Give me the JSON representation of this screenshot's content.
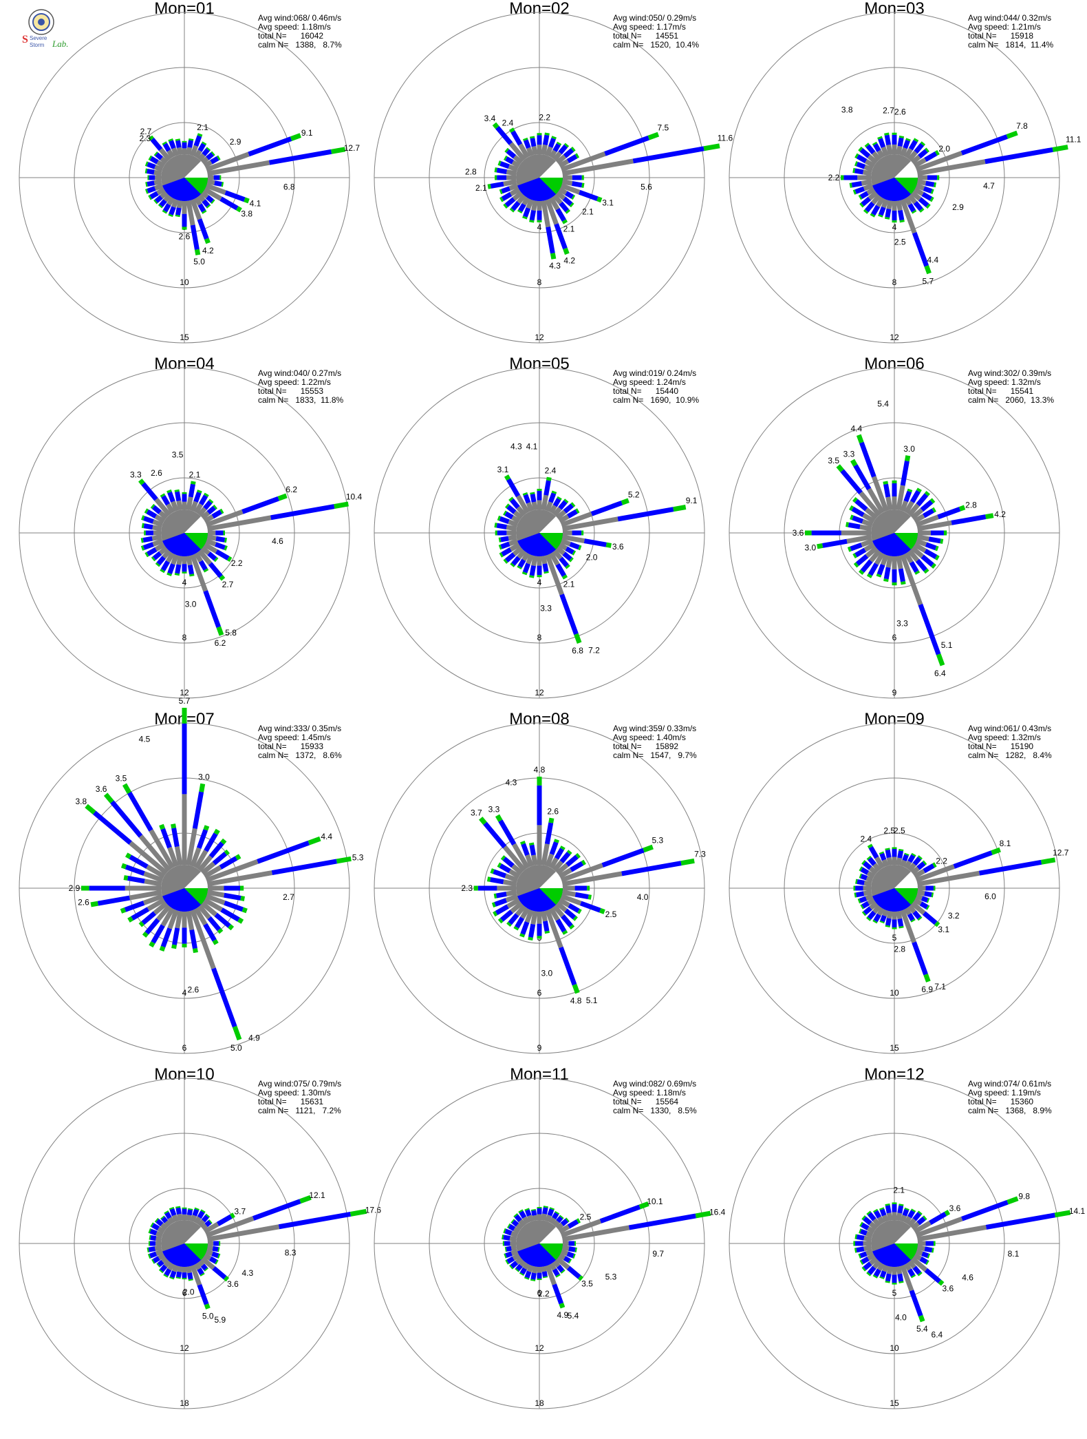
{
  "logo": {
    "primary_text": "Severe",
    "secondary_text": "Storm",
    "tertiary_text": "Lab.",
    "icon": "university-seal-icon"
  },
  "colors": {
    "calm": "#808080",
    "speed_low": "#808080",
    "speed_mid": "#0000ff",
    "speed_high": "#00cc00",
    "speed_max": "#ff8c1a",
    "axis": "#808080"
  },
  "chart_data": [
    {
      "type": "polar-bar",
      "title": "Mon=01",
      "stats": {
        "avg_wind": "Avg wind:068/ 0.46m/s",
        "avg_speed": "Avg speed: 1.18m/s",
        "total_n": "total N=      16042",
        "calm_n": "calm N=   1388,   8.7%"
      },
      "rings": [
        5,
        10,
        15
      ],
      "ring_labels": [
        "5",
        "10",
        "15"
      ],
      "labels": [
        {
          "dir": 20,
          "v": 2.1,
          "t": "2.1"
        },
        {
          "dir": 55,
          "v": 2.9,
          "t": "2.9"
        },
        {
          "dir": 70,
          "v": 9.1,
          "t": "9.1"
        },
        {
          "dir": 80,
          "v": 12.7,
          "t": "12.7"
        },
        {
          "dir": 95,
          "v": 6.8,
          "t": "6.8"
        },
        {
          "dir": 110,
          "v": 4.1,
          "t": "4.1"
        },
        {
          "dir": 120,
          "v": 3.8,
          "t": "3.8"
        },
        {
          "dir": 180,
          "v": 2.6,
          "t": "2.6"
        },
        {
          "dir": 162,
          "v": 4.2,
          "t": "4.2"
        },
        {
          "dir": 170,
          "v": 5.0,
          "t": "5.0"
        },
        {
          "dir": 320,
          "v": 2.7,
          "t": "2.7"
        },
        {
          "dir": 315,
          "v": 2.3,
          "t": "2.3"
        }
      ]
    },
    {
      "type": "polar-bar",
      "title": "Mon=02",
      "stats": {
        "avg_wind": "Avg wind:050/ 0.29m/s",
        "avg_speed": "Avg speed: 1.17m/s",
        "total_n": "total N=      14551",
        "calm_n": "calm N=   1520,  10.4%"
      },
      "rings": [
        4,
        8,
        12
      ],
      "ring_labels": [
        "4",
        "8",
        "12"
      ],
      "labels": [
        {
          "dir": 5,
          "v": 2.2,
          "t": "2.2"
        },
        {
          "dir": 330,
          "v": 2.4,
          "t": "2.4"
        },
        {
          "dir": 320,
          "v": 3.4,
          "t": "3.4"
        },
        {
          "dir": 68,
          "v": 7.5,
          "t": "7.5"
        },
        {
          "dir": 78,
          "v": 11.6,
          "t": "11.6"
        },
        {
          "dir": 95,
          "v": 5.6,
          "t": "5.6"
        },
        {
          "dir": 110,
          "v": 3.1,
          "t": "3.1"
        },
        {
          "dir": 125,
          "v": 2.1,
          "t": "2.1"
        },
        {
          "dir": 150,
          "v": 2.1,
          "t": "2.1"
        },
        {
          "dir": 160,
          "v": 4.2,
          "t": "4.2"
        },
        {
          "dir": 170,
          "v": 4.3,
          "t": "4.3"
        },
        {
          "dir": 275,
          "v": 2.8,
          "t": "2.8"
        },
        {
          "dir": 260,
          "v": 2.1,
          "t": "2.1"
        }
      ]
    },
    {
      "type": "polar-bar",
      "title": "Mon=03",
      "stats": {
        "avg_wind": "Avg wind:044/ 0.32m/s",
        "avg_speed": "Avg speed: 1.21m/s",
        "total_n": "total N=      15918",
        "calm_n": "calm N=   1814,  11.4%"
      },
      "rings": [
        4,
        8,
        12
      ],
      "ring_labels": [
        "4",
        "8",
        "12"
      ],
      "labels": [
        {
          "dir": 5,
          "v": 2.6,
          "t": "2.6"
        },
        {
          "dir": 355,
          "v": 2.7,
          "t": "2.7"
        },
        {
          "dir": 325,
          "v": 3.8,
          "t": "3.8"
        },
        {
          "dir": 60,
          "v": 2.0,
          "t": "2.0"
        },
        {
          "dir": 68,
          "v": 7.8,
          "t": "7.8"
        },
        {
          "dir": 78,
          "v": 11.1,
          "t": "11.1"
        },
        {
          "dir": 95,
          "v": 4.7,
          "t": "4.7"
        },
        {
          "dir": 115,
          "v": 2.9,
          "t": "2.9"
        },
        {
          "dir": 155,
          "v": 4.4,
          "t": "4.4"
        },
        {
          "dir": 162,
          "v": 5.7,
          "t": "5.7"
        },
        {
          "dir": 175,
          "v": 2.5,
          "t": "2.5"
        },
        {
          "dir": 270,
          "v": 2.2,
          "t": "2.2"
        }
      ]
    },
    {
      "type": "polar-bar",
      "title": "Mon=04",
      "stats": {
        "avg_wind": "Avg wind:040/ 0.27m/s",
        "avg_speed": "Avg speed: 1.22m/s",
        "total_n": "total N=      15553",
        "calm_n": "calm N=   1833,  11.8%"
      },
      "rings": [
        4,
        8,
        12
      ],
      "ring_labels": [
        "4",
        "8",
        "12"
      ],
      "labels": [
        {
          "dir": 355,
          "v": 3.5,
          "t": "3.5"
        },
        {
          "dir": 10,
          "v": 2.1,
          "t": "2.1"
        },
        {
          "dir": 335,
          "v": 2.6,
          "t": "2.6"
        },
        {
          "dir": 320,
          "v": 3.3,
          "t": "3.3"
        },
        {
          "dir": 68,
          "v": 6.2,
          "t": "6.2"
        },
        {
          "dir": 78,
          "v": 10.4,
          "t": "10.4"
        },
        {
          "dir": 95,
          "v": 4.6,
          "t": "4.6"
        },
        {
          "dir": 120,
          "v": 2.2,
          "t": "2.2"
        },
        {
          "dir": 140,
          "v": 2.7,
          "t": "2.7"
        },
        {
          "dir": 155,
          "v": 5.8,
          "t": "5.8"
        },
        {
          "dir": 162,
          "v": 6.2,
          "t": "6.2"
        },
        {
          "dir": 175,
          "v": 3.0,
          "t": "3.0"
        }
      ]
    },
    {
      "type": "polar-bar",
      "title": "Mon=05",
      "stats": {
        "avg_wind": "Avg wind:019/ 0.24m/s",
        "avg_speed": "Avg speed: 1.24m/s",
        "total_n": "total N=      15440",
        "calm_n": "calm N=   1690,  10.9%"
      },
      "rings": [
        4,
        8,
        12
      ],
      "ring_labels": [
        "4",
        "8",
        "12"
      ],
      "labels": [
        {
          "dir": 355,
          "v": 4.1,
          "t": "4.1"
        },
        {
          "dir": 345,
          "v": 4.3,
          "t": "4.3"
        },
        {
          "dir": 10,
          "v": 2.4,
          "t": "2.4"
        },
        {
          "dir": 330,
          "v": 3.1,
          "t": "3.1"
        },
        {
          "dir": 68,
          "v": 5.2,
          "t": "5.2"
        },
        {
          "dir": 78,
          "v": 9.1,
          "t": "9.1"
        },
        {
          "dir": 100,
          "v": 3.6,
          "t": "3.6"
        },
        {
          "dir": 115,
          "v": 2.0,
          "t": "2.0"
        },
        {
          "dir": 150,
          "v": 2.1,
          "t": "2.1"
        },
        {
          "dir": 155,
          "v": 7.2,
          "t": "7.2"
        },
        {
          "dir": 162,
          "v": 6.8,
          "t": "6.8"
        },
        {
          "dir": 175,
          "v": 3.3,
          "t": "3.3"
        }
      ]
    },
    {
      "type": "polar-bar",
      "title": "Mon=06",
      "stats": {
        "avg_wind": "Avg wind:302/ 0.39m/s",
        "avg_speed": "Avg speed: 1.32m/s",
        "total_n": "total N=      15541",
        "calm_n": "calm N=   2060,  13.3%"
      },
      "rings": [
        3,
        6,
        9
      ],
      "ring_labels": [
        "3",
        "6",
        "9"
      ],
      "labels": [
        {
          "dir": 355,
          "v": 5.4,
          "t": "5.4"
        },
        {
          "dir": 340,
          "v": 4.4,
          "t": "4.4"
        },
        {
          "dir": 10,
          "v": 3.0,
          "t": "3.0"
        },
        {
          "dir": 330,
          "v": 3.3,
          "t": "3.3"
        },
        {
          "dir": 320,
          "v": 3.5,
          "t": "3.5"
        },
        {
          "dir": 70,
          "v": 2.8,
          "t": "2.8"
        },
        {
          "dir": 80,
          "v": 4.2,
          "t": "4.2"
        },
        {
          "dir": 270,
          "v": 3.6,
          "t": "3.6"
        },
        {
          "dir": 260,
          "v": 3.0,
          "t": "3.0"
        },
        {
          "dir": 155,
          "v": 5.1,
          "t": "5.1"
        },
        {
          "dir": 162,
          "v": 6.4,
          "t": "6.4"
        },
        {
          "dir": 175,
          "v": 3.3,
          "t": "3.3"
        }
      ]
    },
    {
      "type": "polar-bar",
      "title": "Mon=07",
      "stats": {
        "avg_wind": "Avg wind:333/ 0.35m/s",
        "avg_speed": "Avg speed: 1.45m/s",
        "total_n": "total N=      15933",
        "calm_n": "calm N=   1372,   8.6%"
      },
      "rings": [
        2,
        4,
        6
      ],
      "ring_labels": [
        "2",
        "4",
        "6"
      ],
      "labels": [
        {
          "dir": 0,
          "v": 5.7,
          "t": "5.7"
        },
        {
          "dir": 345,
          "v": 4.5,
          "t": "4.5"
        },
        {
          "dir": 10,
          "v": 3.0,
          "t": "3.0"
        },
        {
          "dir": 330,
          "v": 3.5,
          "t": "3.5"
        },
        {
          "dir": 320,
          "v": 3.6,
          "t": "3.6"
        },
        {
          "dir": 310,
          "v": 3.8,
          "t": "3.8"
        },
        {
          "dir": 70,
          "v": 4.4,
          "t": "4.4"
        },
        {
          "dir": 80,
          "v": 5.3,
          "t": "5.3"
        },
        {
          "dir": 95,
          "v": 2.7,
          "t": "2.7"
        },
        {
          "dir": 270,
          "v": 2.9,
          "t": "2.9"
        },
        {
          "dir": 262,
          "v": 2.6,
          "t": "2.6"
        },
        {
          "dir": 155,
          "v": 4.9,
          "t": "4.9"
        },
        {
          "dir": 162,
          "v": 5.0,
          "t": "5.0"
        },
        {
          "dir": 175,
          "v": 2.6,
          "t": "2.6"
        }
      ]
    },
    {
      "type": "polar-bar",
      "title": "Mon=08",
      "stats": {
        "avg_wind": "Avg wind:359/ 0.33m/s",
        "avg_speed": "Avg speed: 1.40m/s",
        "total_n": "total N=      15892",
        "calm_n": "calm N=   1547,   9.7%"
      },
      "rings": [
        3,
        6,
        9
      ],
      "ring_labels": [
        "3",
        "6",
        "9"
      ],
      "labels": [
        {
          "dir": 0,
          "v": 4.8,
          "t": "4.8"
        },
        {
          "dir": 345,
          "v": 4.3,
          "t": "4.3"
        },
        {
          "dir": 10,
          "v": 2.6,
          "t": "2.6"
        },
        {
          "dir": 330,
          "v": 3.3,
          "t": "3.3"
        },
        {
          "dir": 320,
          "v": 3.7,
          "t": "3.7"
        },
        {
          "dir": 68,
          "v": 5.3,
          "t": "5.3"
        },
        {
          "dir": 78,
          "v": 7.3,
          "t": "7.3"
        },
        {
          "dir": 95,
          "v": 4.0,
          "t": "4.0"
        },
        {
          "dir": 110,
          "v": 2.5,
          "t": "2.5"
        },
        {
          "dir": 270,
          "v": 2.3,
          "t": "2.3"
        },
        {
          "dir": 155,
          "v": 5.1,
          "t": "5.1"
        },
        {
          "dir": 162,
          "v": 4.8,
          "t": "4.8"
        },
        {
          "dir": 175,
          "v": 3.0,
          "t": "3.0"
        }
      ]
    },
    {
      "type": "polar-bar",
      "title": "Mon=09",
      "stats": {
        "avg_wind": "Avg wind:061/ 0.43m/s",
        "avg_speed": "Avg speed: 1.32m/s",
        "total_n": "total N=      15190",
        "calm_n": "calm N=   1282,   8.4%"
      },
      "rings": [
        5,
        10,
        15
      ],
      "ring_labels": [
        "5",
        "10",
        "15"
      ],
      "labels": [
        {
          "dir": 5,
          "v": 2.5,
          "t": "2.5"
        },
        {
          "dir": 355,
          "v": 2.5,
          "t": "2.5"
        },
        {
          "dir": 330,
          "v": 2.4,
          "t": "2.4"
        },
        {
          "dir": 60,
          "v": 2.2,
          "t": "2.2"
        },
        {
          "dir": 68,
          "v": 8.1,
          "t": "8.1"
        },
        {
          "dir": 78,
          "v": 12.7,
          "t": "12.7"
        },
        {
          "dir": 95,
          "v": 6.0,
          "t": "6.0"
        },
        {
          "dir": 115,
          "v": 3.2,
          "t": "3.2"
        },
        {
          "dir": 130,
          "v": 3.1,
          "t": "3.1"
        },
        {
          "dir": 155,
          "v": 7.1,
          "t": "7.1"
        },
        {
          "dir": 162,
          "v": 6.9,
          "t": "6.9"
        },
        {
          "dir": 175,
          "v": 2.8,
          "t": "2.8"
        }
      ]
    },
    {
      "type": "polar-bar",
      "title": "Mon=10",
      "stats": {
        "avg_wind": "Avg wind:075/ 0.79m/s",
        "avg_speed": "Avg speed: 1.30m/s",
        "total_n": "total N=      15631",
        "calm_n": "calm N=   1121,   7.2%"
      },
      "rings": [
        6,
        12,
        18
      ],
      "ring_labels": [
        "6",
        "12",
        "18"
      ],
      "labels": [
        {
          "dir": 60,
          "v": 3.7,
          "t": "3.7"
        },
        {
          "dir": 70,
          "v": 12.1,
          "t": "12.1"
        },
        {
          "dir": 80,
          "v": 17.6,
          "t": "17.6"
        },
        {
          "dir": 95,
          "v": 8.3,
          "t": "8.3"
        },
        {
          "dir": 115,
          "v": 4.3,
          "t": "4.3"
        },
        {
          "dir": 130,
          "v": 3.6,
          "t": "3.6"
        },
        {
          "dir": 155,
          "v": 5.9,
          "t": "5.9"
        },
        {
          "dir": 162,
          "v": 5.0,
          "t": "5.0"
        },
        {
          "dir": 175,
          "v": 2.0,
          "t": "2.0"
        }
      ]
    },
    {
      "type": "polar-bar",
      "title": "Mon=11",
      "stats": {
        "avg_wind": "Avg wind:082/ 0.69m/s",
        "avg_speed": "Avg speed: 1.18m/s",
        "total_n": "total N=      15564",
        "calm_n": "calm N=   1330,   8.5%"
      },
      "rings": [
        6,
        12,
        18
      ],
      "ring_labels": [
        "6",
        "12",
        "18"
      ],
      "labels": [
        {
          "dir": 60,
          "v": 2.5,
          "t": "2.5"
        },
        {
          "dir": 70,
          "v": 10.1,
          "t": "10.1"
        },
        {
          "dir": 80,
          "v": 16.4,
          "t": "16.4"
        },
        {
          "dir": 95,
          "v": 9.7,
          "t": "9.7"
        },
        {
          "dir": 115,
          "v": 5.3,
          "t": "5.3"
        },
        {
          "dir": 130,
          "v": 3.5,
          "t": "3.5"
        },
        {
          "dir": 155,
          "v": 5.4,
          "t": "5.4"
        },
        {
          "dir": 162,
          "v": 4.9,
          "t": "4.9"
        },
        {
          "dir": 175,
          "v": 2.2,
          "t": "2.2"
        }
      ]
    },
    {
      "type": "polar-bar",
      "title": "Mon=12",
      "stats": {
        "avg_wind": "Avg wind:074/ 0.61m/s",
        "avg_speed": "Avg speed: 1.19m/s",
        "total_n": "total N=      15360",
        "calm_n": "calm N=   1368,   8.9%"
      },
      "rings": [
        5,
        10,
        15
      ],
      "ring_labels": [
        "5",
        "10",
        "15"
      ],
      "labels": [
        {
          "dir": 5,
          "v": 2.1,
          "t": "2.1"
        },
        {
          "dir": 60,
          "v": 3.6,
          "t": "3.6"
        },
        {
          "dir": 70,
          "v": 9.8,
          "t": "9.8"
        },
        {
          "dir": 80,
          "v": 14.1,
          "t": "14.1"
        },
        {
          "dir": 95,
          "v": 8.1,
          "t": "8.1"
        },
        {
          "dir": 115,
          "v": 4.6,
          "t": "4.6"
        },
        {
          "dir": 130,
          "v": 3.6,
          "t": "3.6"
        },
        {
          "dir": 155,
          "v": 6.4,
          "t": "6.4"
        },
        {
          "dir": 162,
          "v": 5.4,
          "t": "5.4"
        },
        {
          "dir": 175,
          "v": 4.0,
          "t": "4.0"
        }
      ]
    }
  ]
}
